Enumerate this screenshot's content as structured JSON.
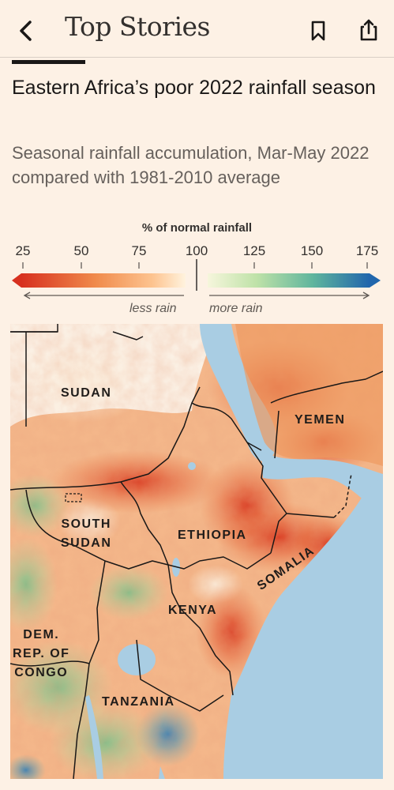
{
  "topbar": {
    "title": "Top Stories",
    "back_icon": "chevron-left-icon",
    "bookmark_icon": "bookmark-icon",
    "share_icon": "share-icon"
  },
  "article": {
    "headline": "Eastern Africa’s poor 2022 rainfall season",
    "subtitle": "Seasonal rainfall accumulation, Mar-May 2022 compared with 1981-2010 average"
  },
  "legend": {
    "title": "% of normal rainfall",
    "ticks": [
      "25",
      "50",
      "75",
      "100",
      "125",
      "150",
      "175"
    ],
    "less_label": "less rain",
    "more_label": "more rain",
    "colors": {
      "low": "#d7301f",
      "mid_low": "#fdae61",
      "normal": "#fff3de",
      "mid_high": "#8cc98c",
      "high": "#2166ac"
    }
  },
  "map": {
    "labels": {
      "sudan": "SUDAN",
      "yemen": "YEMEN",
      "south_sudan": [
        "SOUTH",
        "SUDAN"
      ],
      "ethiopia": "ETHIOPIA",
      "somalia": "SOMALIA",
      "kenya": "KENYA",
      "drc": [
        "DEM.",
        "REP. OF",
        "CONGO"
      ],
      "tanzania": "TANZANIA"
    },
    "colors": {
      "sea": "#a9cde3",
      "border": "#1a1817"
    }
  }
}
